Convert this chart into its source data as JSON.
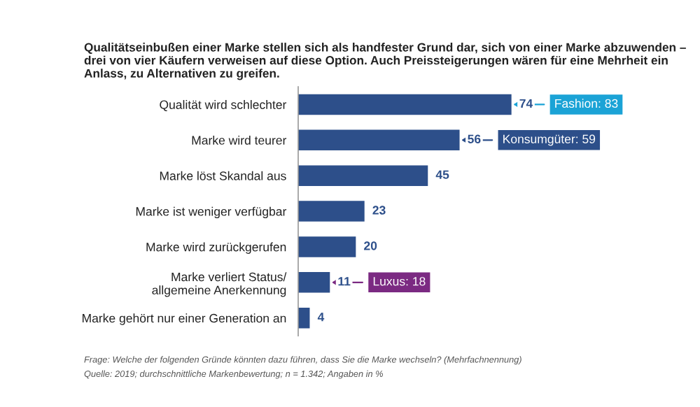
{
  "chart_data": {
    "type": "bar",
    "orientation": "horizontal",
    "data_labels": true,
    "grid": false,
    "title": "Qualitätseinbußen einer Marke stellen sich als handfester Grund dar, sich von einer Marke abzuwenden – drei von vier Käufern verweisen auf diese Option. Auch Preissteigerungen wären für eine Mehrheit ein Anlass, zu Alternativen zu greifen.",
    "categories": [
      "Qualität wird schlechter",
      "Marke wird teurer",
      "Marke löst Skandal aus",
      "Marke ist weniger verfügbar",
      "Marke wird zurückgerufen",
      "Marke verliert Status/\nallgemeine Anerkennung",
      "Marke gehört nur einer Generation an"
    ],
    "values": [
      74,
      56,
      45,
      23,
      20,
      11,
      4
    ],
    "color": "#2d4f8a",
    "annotations": [
      {
        "text": "Fashion: 83",
        "x": 74,
        "y": "Qualität wird schlechter"
      },
      {
        "text": "Konsumgüter: 59",
        "x": 56,
        "y": "Marke wird teurer"
      },
      {
        "text": "Luxus: 18",
        "x": 11,
        "y": "Marke verliert Status/\nallgemeine Anerkennung"
      },
      "Frage: Welche der folgenden Gründe könnten dazu führen, dass Sie die Marke wechseln? (Mehrfachnennung)",
      "Quelle: 2019; durchschnittliche Markenbewertung; n = 1.342; Angaben in %"
    ]
  }
}
